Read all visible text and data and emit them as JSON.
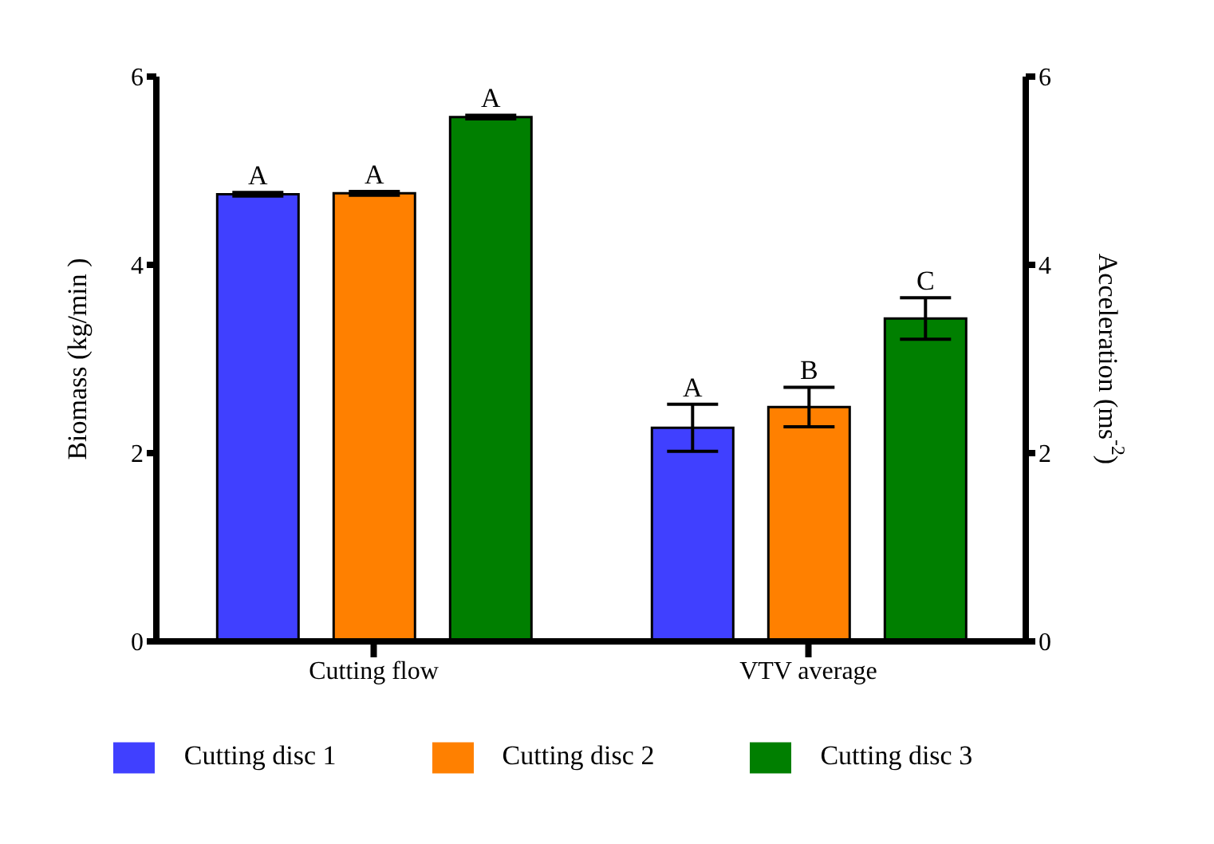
{
  "chart_data": {
    "type": "bar",
    "categories": [
      "Cutting flow",
      "VTV average"
    ],
    "series": [
      {
        "name": "Cutting disc 1",
        "color": "#4040ff",
        "values": [
          4.75,
          2.27
        ],
        "errors": [
          0.02,
          0.25
        ],
        "value_labels": [
          "A",
          "A"
        ]
      },
      {
        "name": "Cutting disc 2",
        "color": "#ff8000",
        "values": [
          4.76,
          2.49
        ],
        "errors": [
          0.02,
          0.21
        ],
        "value_labels": [
          "A",
          "B"
        ]
      },
      {
        "name": "Cutting disc 3",
        "color": "#007f00",
        "values": [
          5.57,
          3.43
        ],
        "errors": [
          0.02,
          0.22
        ],
        "value_labels": [
          "A",
          "C"
        ]
      }
    ],
    "ylabel": "Biomass (kg/min )",
    "y2label": "Acceleration (ms$^{-2}$)",
    "ylim": [
      0,
      6
    ],
    "yticks": [
      0,
      2,
      4,
      6
    ],
    "y2lim": [
      0,
      6
    ],
    "y2ticks": [
      0,
      2,
      4,
      6
    ],
    "grid": false,
    "legend": "bottom"
  }
}
